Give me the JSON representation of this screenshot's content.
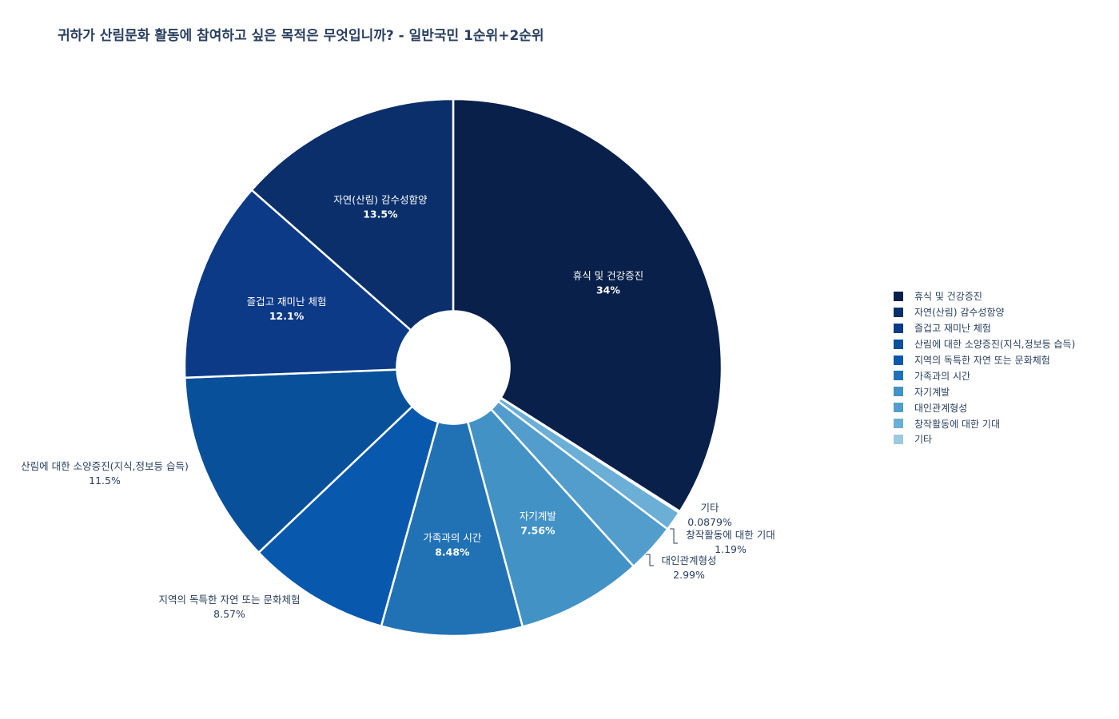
{
  "chart_data": {
    "type": "pie",
    "title": "귀하가 산림문화 활동에 참여하고 싶은 목적은 무엇입니까? - 일반국민 1순위+2순위",
    "hole": 0.21,
    "legend_position": "right",
    "slices": [
      {
        "label": "휴식 및 건강증진",
        "value": 34,
        "value_text": "34%",
        "color": "#08204a",
        "label_position": "inside"
      },
      {
        "label": "기타",
        "value": 0.0879,
        "value_text": "0.0879%",
        "color": "#9ecae1",
        "label_position": "outside"
      },
      {
        "label": "창작활동에 대한 기대",
        "value": 1.19,
        "value_text": "1.19%",
        "color": "#6baed6",
        "label_position": "outside"
      },
      {
        "label": "대인관계형성",
        "value": 2.99,
        "value_text": "2.99%",
        "color": "#529dcc",
        "label_position": "outside"
      },
      {
        "label": "자기계발",
        "value": 7.56,
        "value_text": "7.56%",
        "color": "#4292c6",
        "label_position": "inside"
      },
      {
        "label": "가족과의 시간",
        "value": 8.48,
        "value_text": "8.48%",
        "color": "#2171b5",
        "label_position": "inside"
      },
      {
        "label": "지역의 독특한 자연 또는 문화체험",
        "value": 8.57,
        "value_text": "8.57%",
        "color": "#0858ae",
        "label_position": "outside"
      },
      {
        "label": "산림에 대한 소양증진(지식,정보등 습득)",
        "value": 11.5,
        "value_text": "11.5%",
        "color": "#08509a",
        "label_position": "outside"
      },
      {
        "label": "즐겁고 재미난 체험",
        "value": 12.1,
        "value_text": "12.1%",
        "color": "#0c3a87",
        "label_position": "inside"
      },
      {
        "label": "자연(산림) 감수성함양",
        "value": 13.5,
        "value_text": "13.5%",
        "color": "#0a2f6b",
        "label_position": "inside"
      }
    ],
    "legend_order": [
      "휴식 및 건강증진",
      "자연(산림) 감수성함양",
      "즐겁고 재미난 체험",
      "산림에 대한 소양증진(지식,정보등 습득)",
      "지역의 독특한 자연 또는 문화체험",
      "가족과의 시간",
      "자기계발",
      "대인관계형성",
      "창작활동에 대한 기대",
      "기타"
    ]
  }
}
